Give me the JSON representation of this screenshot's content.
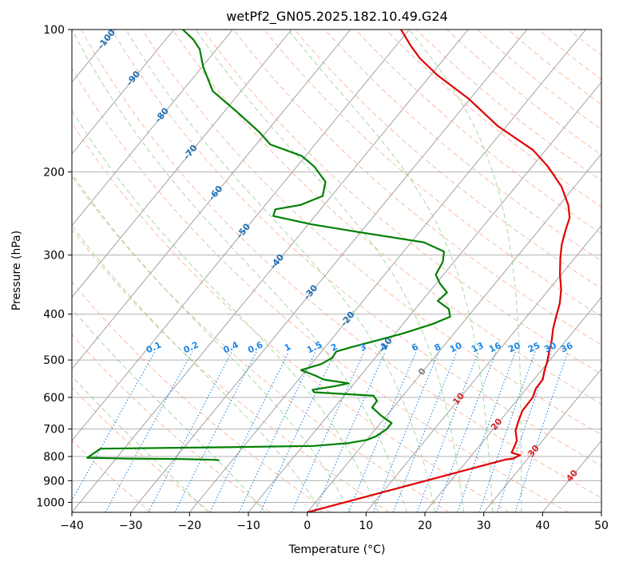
{
  "chart_data": {
    "type": "skew-t",
    "title": "wetPf2_GN05.2025.182.10.49.G24",
    "xlabel": "Temperature (°C)",
    "ylabel": "Pressure (hPa)",
    "xlim": [
      -40,
      50
    ],
    "ylim": [
      1050,
      100
    ],
    "y_scale": "log",
    "grid": true,
    "x_ticks": [
      "−40",
      "−30",
      "−20",
      "−10",
      "0",
      "10",
      "20",
      "30",
      "40",
      "50"
    ],
    "x_tick_values": [
      -40,
      -30,
      -20,
      -10,
      0,
      10,
      20,
      30,
      40,
      50
    ],
    "y_ticks": [
      "100",
      "200",
      "300",
      "400",
      "500",
      "600",
      "700",
      "800",
      "900",
      "1000"
    ],
    "y_tick_values": [
      100,
      200,
      300,
      400,
      500,
      600,
      700,
      800,
      900,
      1000
    ],
    "colors": {
      "temperature": "#e00000",
      "dewpoint": "#008000",
      "isotherm": "#999999",
      "dry_adiabat": "#f4a582",
      "moist_adiabat": "#8fcf8f",
      "mixing_ratio": "#1e88e5",
      "isotherm_label_blue": "#1f6fb2",
      "isotherm_label_red": "#d62728",
      "zero_label": "#808080"
    },
    "series": [
      {
        "key": "temperature",
        "points": [
          [
            1050,
            0
          ],
          [
            812,
            26.3
          ],
          [
            808,
            27.5
          ],
          [
            795,
            28.2
          ],
          [
            785,
            26.4
          ],
          [
            760,
            26
          ],
          [
            740,
            25.6
          ],
          [
            705,
            24
          ],
          [
            670,
            23.1
          ],
          [
            640,
            22.4
          ],
          [
            600,
            22.3
          ],
          [
            575,
            21.6
          ],
          [
            550,
            21.5
          ],
          [
            525,
            20.5
          ],
          [
            505,
            19.8
          ],
          [
            480,
            18.7
          ],
          [
            455,
            17.6
          ],
          [
            430,
            16.2
          ],
          [
            405,
            15
          ],
          [
            380,
            13.8
          ],
          [
            355,
            12.1
          ],
          [
            330,
            9.8
          ],
          [
            305,
            7.6
          ],
          [
            285,
            5.9
          ],
          [
            265,
            4.5
          ],
          [
            250,
            3.5
          ],
          [
            235,
            1.5
          ],
          [
            215,
            -2.2
          ],
          [
            195,
            -7.3
          ],
          [
            180,
            -12.1
          ],
          [
            160,
            -21.5
          ],
          [
            140,
            -30.3
          ],
          [
            125,
            -38.8
          ],
          [
            115,
            -44.2
          ],
          [
            108,
            -47.6
          ],
          [
            100,
            -51.4
          ]
        ]
      },
      {
        "key": "dewpoint",
        "points": [
          [
            815,
            -22.2
          ],
          [
            813,
            -23.1
          ],
          [
            810,
            -29
          ],
          [
            808,
            -38.1
          ],
          [
            805,
            -45
          ],
          [
            770,
            -44
          ],
          [
            765,
            -23.7
          ],
          [
            760,
            -8.2
          ],
          [
            750,
            -2.8
          ],
          [
            738,
            0
          ],
          [
            725,
            1.1
          ],
          [
            700,
            1.9
          ],
          [
            680,
            1.9
          ],
          [
            655,
            -1
          ],
          [
            630,
            -3.6
          ],
          [
            610,
            -3.7
          ],
          [
            595,
            -5
          ],
          [
            585,
            -15.6
          ],
          [
            578,
            -16.2
          ],
          [
            568,
            -12.9
          ],
          [
            560,
            -11
          ],
          [
            550,
            -15.7
          ],
          [
            540,
            -17.6
          ],
          [
            525,
            -20.9
          ],
          [
            510,
            -18.3
          ],
          [
            495,
            -17.3
          ],
          [
            480,
            -17.5
          ],
          [
            470,
            -15.6
          ],
          [
            460,
            -13.3
          ],
          [
            440,
            -8.8
          ],
          [
            420,
            -5
          ],
          [
            405,
            -3
          ],
          [
            390,
            -4.3
          ],
          [
            375,
            -7.3
          ],
          [
            360,
            -6.9
          ],
          [
            345,
            -9.3
          ],
          [
            330,
            -11.3
          ],
          [
            310,
            -11.9
          ],
          [
            295,
            -13.1
          ],
          [
            282,
            -17.8
          ],
          [
            268,
            -30.6
          ],
          [
            258,
            -39.6
          ],
          [
            248,
            -47.1
          ],
          [
            240,
            -47.7
          ],
          [
            235,
            -44
          ],
          [
            225,
            -41.5
          ],
          [
            210,
            -43
          ],
          [
            195,
            -47
          ],
          [
            185,
            -50.7
          ],
          [
            175,
            -57.6
          ],
          [
            165,
            -61.1
          ],
          [
            150,
            -67.5
          ],
          [
            135,
            -74.8
          ],
          [
            120,
            -79.8
          ],
          [
            110,
            -82.9
          ],
          [
            105,
            -85.3
          ],
          [
            100,
            -88.5
          ]
        ]
      }
    ],
    "isotherm_labels": [
      {
        "text": "-100",
        "t": -100,
        "p": 105
      },
      {
        "text": "-90",
        "t": -90,
        "p": 127
      },
      {
        "text": "-80",
        "t": -80,
        "p": 152
      },
      {
        "text": "-70",
        "t": -70,
        "p": 182
      },
      {
        "text": "-60",
        "t": -60,
        "p": 222
      },
      {
        "text": "-50",
        "t": -50,
        "p": 267
      },
      {
        "text": "-40",
        "t": -40,
        "p": 310
      },
      {
        "text": "-30",
        "t": -30,
        "p": 360
      },
      {
        "text": "-20",
        "t": -20,
        "p": 410
      },
      {
        "text": "-10",
        "t": -10,
        "p": 465
      },
      {
        "text": "0",
        "t": 0,
        "p": 530
      },
      {
        "text": "10",
        "t": 10,
        "p": 605
      },
      {
        "text": "20",
        "t": 20,
        "p": 685
      },
      {
        "text": "30",
        "t": 30,
        "p": 780
      },
      {
        "text": "40",
        "t": 40,
        "p": 880
      }
    ],
    "mixing_ratio_labels": [
      {
        "text": "0.1",
        "w": 0.1
      },
      {
        "text": "0.2",
        "w": 0.2
      },
      {
        "text": "0.4",
        "w": 0.4
      },
      {
        "text": "0.6",
        "w": 0.6
      },
      {
        "text": "1",
        "w": 1
      },
      {
        "text": "1.5",
        "w": 1.5
      },
      {
        "text": "2",
        "w": 2
      },
      {
        "text": "3",
        "w": 3
      },
      {
        "text": "4",
        "w": 4
      },
      {
        "text": "6",
        "w": 6
      },
      {
        "text": "8",
        "w": 8
      },
      {
        "text": "10",
        "w": 10
      },
      {
        "text": "13",
        "w": 13
      },
      {
        "text": "16",
        "w": 16
      },
      {
        "text": "20",
        "w": 20
      },
      {
        "text": "25",
        "w": 25
      },
      {
        "text": "30",
        "w": 30
      },
      {
        "text": "36",
        "w": 36
      }
    ],
    "mixing_ratio_label_pressure": 480,
    "dry_adiabats_theta_c": [
      -30,
      -20,
      -10,
      0,
      10,
      20,
      30,
      40,
      50,
      60,
      70,
      80,
      90,
      100,
      110,
      120,
      130,
      140,
      150,
      160,
      170,
      180,
      190,
      200,
      210,
      220,
      230,
      240,
      250
    ],
    "moist_adiabats_t0_c": [
      -20,
      -10,
      0,
      5,
      10,
      15,
      20,
      25,
      30,
      35
    ]
  }
}
